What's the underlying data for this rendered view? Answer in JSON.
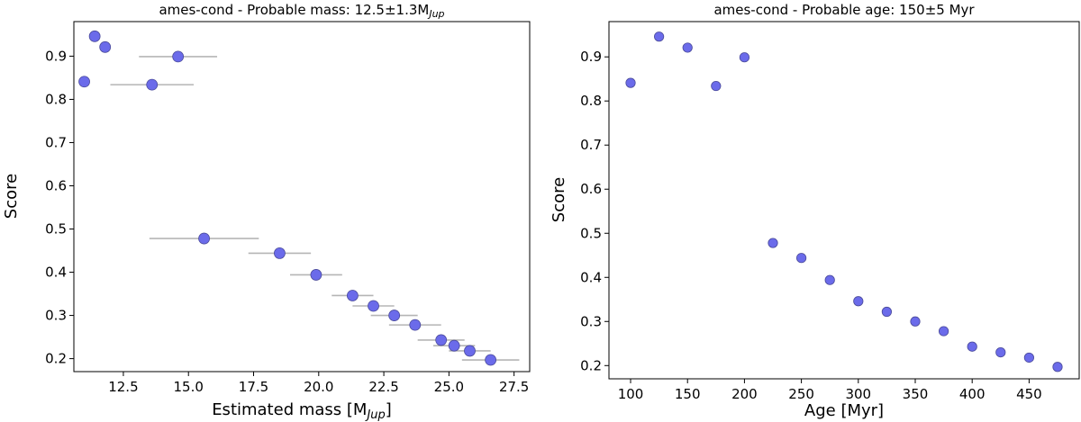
{
  "chart_data": [
    {
      "type": "scatter",
      "title": "ames-cond - Probable mass: 12.5±1.3M",
      "title_sub": "Jup",
      "xlabel": "Estimated mass [M",
      "xlabel_sub": "Jup",
      "xlabel_end": "]",
      "ylabel": "Score",
      "xlim": [
        10.6,
        28.1
      ],
      "ylim": [
        0.17,
        0.98
      ],
      "xticks": [
        12.5,
        15.0,
        17.5,
        20.0,
        22.5,
        25.0,
        27.5
      ],
      "xtick_labels": [
        "12.5",
        "15.0",
        "17.5",
        "20.0",
        "22.5",
        "25.0",
        "27.5"
      ],
      "yticks": [
        0.2,
        0.3,
        0.4,
        0.5,
        0.6,
        0.7,
        0.8,
        0.9
      ],
      "ytick_labels": [
        "0.2",
        "0.3",
        "0.4",
        "0.5",
        "0.6",
        "0.7",
        "0.8",
        "0.9"
      ],
      "grid": false,
      "point_color": "#6b6bea",
      "errorbar_color": "#b5b5b5",
      "points": [
        {
          "x": 11.0,
          "y": 0.841,
          "xerr": 0.0
        },
        {
          "x": 11.4,
          "y": 0.946,
          "xerr": 0.0
        },
        {
          "x": 11.8,
          "y": 0.921,
          "xerr": 0.0
        },
        {
          "x": 13.6,
          "y": 0.834,
          "xerr": 1.6
        },
        {
          "x": 14.6,
          "y": 0.899,
          "xerr": 1.5
        },
        {
          "x": 15.6,
          "y": 0.478,
          "xerr": 2.1
        },
        {
          "x": 18.5,
          "y": 0.444,
          "xerr": 1.2
        },
        {
          "x": 19.9,
          "y": 0.394,
          "xerr": 1.0
        },
        {
          "x": 21.3,
          "y": 0.346,
          "xerr": 0.8
        },
        {
          "x": 22.1,
          "y": 0.322,
          "xerr": 0.8
        },
        {
          "x": 22.9,
          "y": 0.3,
          "xerr": 0.9
        },
        {
          "x": 23.7,
          "y": 0.278,
          "xerr": 1.0
        },
        {
          "x": 24.7,
          "y": 0.243,
          "xerr": 0.9
        },
        {
          "x": 25.2,
          "y": 0.23,
          "xerr": 0.8
        },
        {
          "x": 25.8,
          "y": 0.218,
          "xerr": 0.8
        },
        {
          "x": 26.6,
          "y": 0.197,
          "xerr": 1.1
        }
      ]
    },
    {
      "type": "scatter",
      "title": "ames-cond - Probable age: 150±5 Myr",
      "xlabel": "Age [Myr]",
      "ylabel": "Score",
      "xlim": [
        81,
        494
      ],
      "ylim": [
        0.17,
        0.98
      ],
      "xticks": [
        100,
        150,
        200,
        250,
        300,
        350,
        400,
        450
      ],
      "xtick_labels": [
        "100",
        "150",
        "200",
        "250",
        "300",
        "350",
        "400",
        "450"
      ],
      "yticks": [
        0.2,
        0.3,
        0.4,
        0.5,
        0.6,
        0.7,
        0.8,
        0.9
      ],
      "ytick_labels": [
        "0.2",
        "0.3",
        "0.4",
        "0.5",
        "0.6",
        "0.7",
        "0.8",
        "0.9"
      ],
      "grid": false,
      "point_color": "#6b6bea",
      "points": [
        {
          "x": 100,
          "y": 0.841
        },
        {
          "x": 125,
          "y": 0.946
        },
        {
          "x": 150,
          "y": 0.921
        },
        {
          "x": 175,
          "y": 0.834
        },
        {
          "x": 200,
          "y": 0.899
        },
        {
          "x": 225,
          "y": 0.478
        },
        {
          "x": 250,
          "y": 0.444
        },
        {
          "x": 275,
          "y": 0.394
        },
        {
          "x": 300,
          "y": 0.346
        },
        {
          "x": 325,
          "y": 0.322
        },
        {
          "x": 350,
          "y": 0.3
        },
        {
          "x": 375,
          "y": 0.278
        },
        {
          "x": 400,
          "y": 0.243
        },
        {
          "x": 425,
          "y": 0.23
        },
        {
          "x": 450,
          "y": 0.218
        },
        {
          "x": 475,
          "y": 0.197
        }
      ]
    }
  ]
}
